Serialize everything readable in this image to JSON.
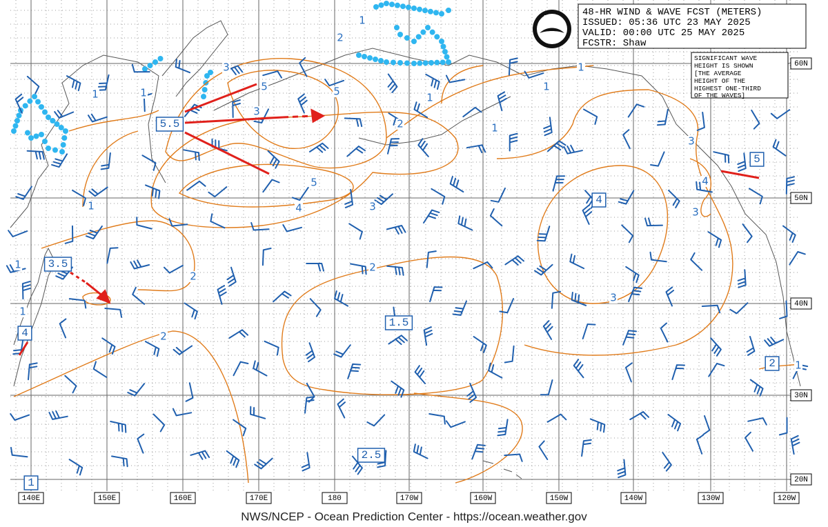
{
  "header": {
    "lines": [
      "48-HR WIND & WAVE FCST (METERS)",
      "ISSUED: 05:36 UTC 23 MAY 2025",
      "VALID:  00:00 UTC 25 MAY 2025",
      "FCSTR:  Shaw"
    ]
  },
  "note": {
    "lines": [
      "SIGNIFICANT WAVE",
      "HEIGHT IS SHOWN",
      "[THE AVERAGE",
      "HEIGHT OF THE",
      "HIGHEST ONE-THIRD",
      "OF THE WAVES]"
    ]
  },
  "logo": "NOAA",
  "longitude_labels": [
    "140E",
    "150E",
    "160E",
    "170E",
    "180",
    "170W",
    "160W",
    "150W",
    "140W",
    "130W",
    "120W"
  ],
  "latitude_labels": [
    "60N",
    "50N",
    "40N",
    "30N",
    "20N"
  ],
  "wave_height_boxes": [
    "5.5",
    "3.5",
    "4",
    "1.5",
    "2.5",
    "1",
    "4",
    "5",
    "2"
  ],
  "contour_labels": [
    "1",
    "2",
    "3",
    "5",
    "3",
    "5",
    "2",
    "1",
    "1",
    "1",
    "1",
    "3",
    "4",
    "3",
    "5",
    "4",
    "3",
    "1",
    "1",
    "1",
    "1",
    "1",
    "2",
    "2",
    "3",
    "2",
    "1"
  ],
  "footer": "NWS/NCEP - Ocean Prediction Center - https://ocean.weather.gov"
}
